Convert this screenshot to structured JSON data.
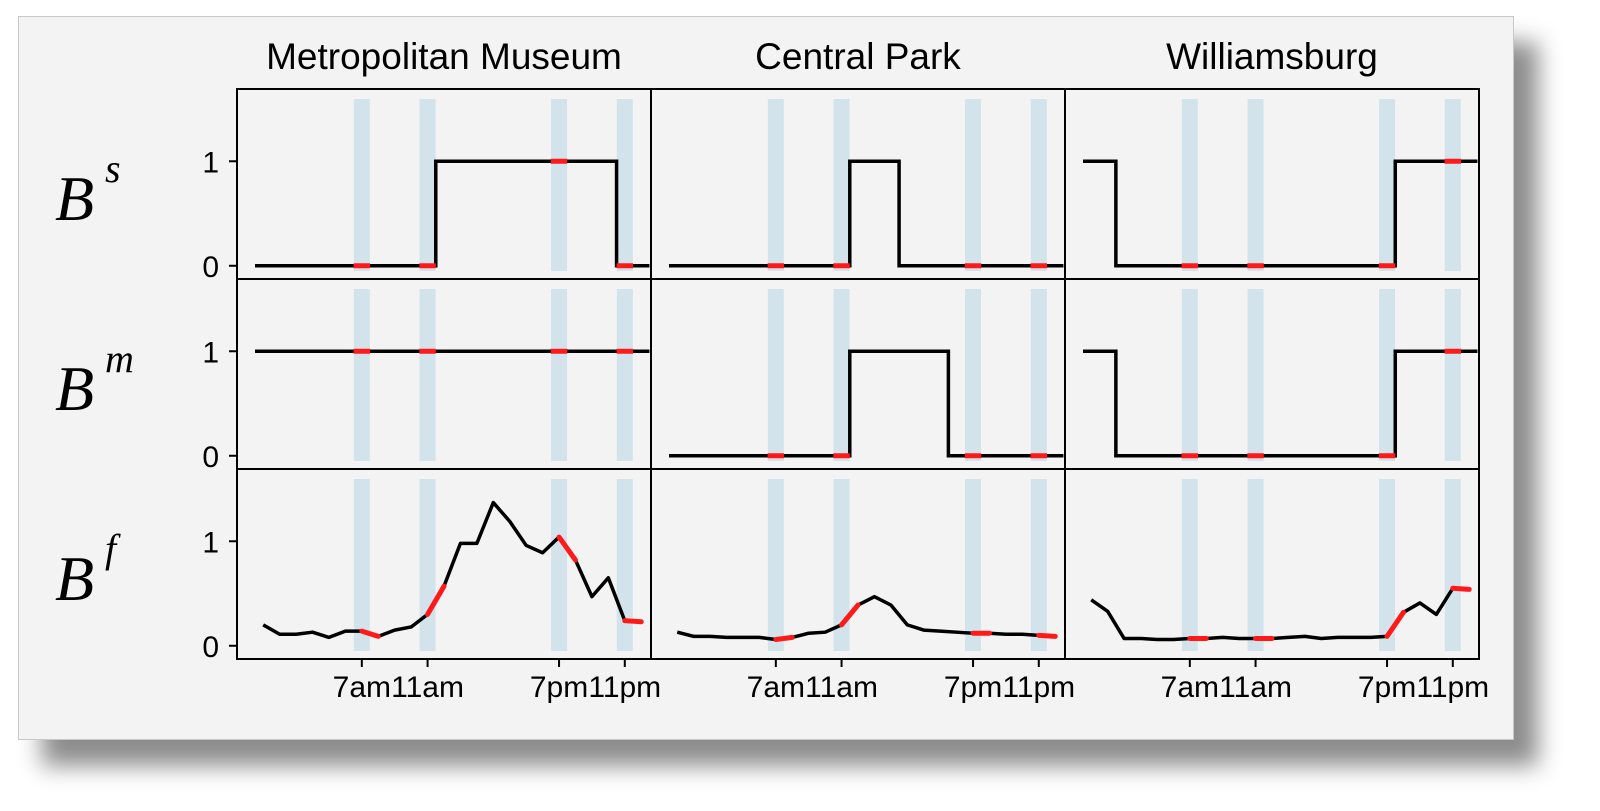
{
  "chart_data": {
    "type": "line",
    "step": true,
    "columns": [
      "Metropolitan Museum",
      "Central Park",
      "Williamsburg"
    ],
    "rows": [
      {
        "symbol": "B",
        "superscript": "s",
        "kind": "step"
      },
      {
        "symbol": "B",
        "superscript": "m",
        "kind": "step"
      },
      {
        "symbol": "B",
        "superscript": "f",
        "kind": "line"
      }
    ],
    "x_range": [
      0,
      23
    ],
    "x_tick_hours": [
      6,
      10,
      18,
      22
    ],
    "x_tick_labels": [
      "7am",
      "11am",
      "7pm",
      "11pm"
    ],
    "y_ticks": [
      0,
      1
    ],
    "y_range": [
      -0.05,
      1.5
    ],
    "shaded_hours": [
      6,
      10,
      18,
      22
    ],
    "highlight_color": "#ff1a1a",
    "line_color": "#000000",
    "band_color": "#d3e3ec",
    "series": [
      [
        {
          "x": [
            0,
            1,
            2,
            3,
            4,
            5,
            6,
            7,
            8,
            9,
            10,
            11,
            12,
            13,
            14,
            15,
            16,
            17,
            18,
            19,
            20,
            21,
            22,
            23
          ],
          "y": [
            0,
            0,
            0,
            0,
            0,
            0,
            0,
            0,
            0,
            0,
            0,
            1,
            1,
            1,
            1,
            1,
            1,
            1,
            1,
            1,
            1,
            1,
            0,
            0
          ]
        },
        {
          "x": [
            0,
            1,
            2,
            3,
            4,
            5,
            6,
            7,
            8,
            9,
            10,
            11,
            12,
            13,
            14,
            15,
            16,
            17,
            18,
            19,
            20,
            21,
            22,
            23
          ],
          "y": [
            1,
            1,
            1,
            1,
            1,
            1,
            1,
            1,
            1,
            1,
            1,
            1,
            1,
            1,
            1,
            1,
            1,
            1,
            1,
            1,
            1,
            1,
            1,
            1
          ]
        },
        {
          "x": [
            0,
            1,
            2,
            3,
            4,
            5,
            6,
            7,
            8,
            9,
            10,
            11,
            12,
            13,
            14,
            15,
            16,
            17,
            18,
            19,
            20,
            21,
            22,
            23
          ],
          "y": [
            0.2,
            0.11,
            0.11,
            0.13,
            0.08,
            0.14,
            0.14,
            0.09,
            0.15,
            0.18,
            0.3,
            0.57,
            0.98,
            0.98,
            1.37,
            1.19,
            0.96,
            0.89,
            1.04,
            0.82,
            0.47,
            0.65,
            0.24,
            0.23
          ]
        }
      ],
      [
        {
          "x": [
            0,
            1,
            2,
            3,
            4,
            5,
            6,
            7,
            8,
            9,
            10,
            11,
            12,
            13,
            14,
            15,
            16,
            17,
            18,
            19,
            20,
            21,
            22,
            23
          ],
          "y": [
            0,
            0,
            0,
            0,
            0,
            0,
            0,
            0,
            0,
            0,
            0,
            1,
            1,
            1,
            0,
            0,
            0,
            0,
            0,
            0,
            0,
            0,
            0,
            0
          ]
        },
        {
          "x": [
            0,
            1,
            2,
            3,
            4,
            5,
            6,
            7,
            8,
            9,
            10,
            11,
            12,
            13,
            14,
            15,
            16,
            17,
            18,
            19,
            20,
            21,
            22,
            23
          ],
          "y": [
            0,
            0,
            0,
            0,
            0,
            0,
            0,
            0,
            0,
            0,
            0,
            1,
            1,
            1,
            1,
            1,
            1,
            0,
            0,
            0,
            0,
            0,
            0,
            0
          ]
        },
        {
          "x": [
            0,
            1,
            2,
            3,
            4,
            5,
            6,
            7,
            8,
            9,
            10,
            11,
            12,
            13,
            14,
            15,
            16,
            17,
            18,
            19,
            20,
            21,
            22,
            23
          ],
          "y": [
            0.13,
            0.09,
            0.09,
            0.08,
            0.08,
            0.08,
            0.06,
            0.08,
            0.12,
            0.13,
            0.2,
            0.39,
            0.47,
            0.39,
            0.2,
            0.15,
            0.14,
            0.13,
            0.12,
            0.12,
            0.11,
            0.11,
            0.1,
            0.09
          ]
        }
      ],
      [
        {
          "x": [
            0,
            1,
            2,
            3,
            4,
            5,
            6,
            7,
            8,
            9,
            10,
            11,
            12,
            13,
            14,
            15,
            16,
            17,
            18,
            19,
            20,
            21,
            22,
            23
          ],
          "y": [
            1,
            1,
            0,
            0,
            0,
            0,
            0,
            0,
            0,
            0,
            0,
            0,
            0,
            0,
            0,
            0,
            0,
            0,
            0,
            1,
            1,
            1,
            1,
            1
          ]
        },
        {
          "x": [
            0,
            1,
            2,
            3,
            4,
            5,
            6,
            7,
            8,
            9,
            10,
            11,
            12,
            13,
            14,
            15,
            16,
            17,
            18,
            19,
            20,
            21,
            22,
            23
          ],
          "y": [
            1,
            1,
            0,
            0,
            0,
            0,
            0,
            0,
            0,
            0,
            0,
            0,
            0,
            0,
            0,
            0,
            0,
            0,
            0,
            1,
            1,
            1,
            1,
            1
          ]
        },
        {
          "x": [
            0,
            1,
            2,
            3,
            4,
            5,
            6,
            7,
            8,
            9,
            10,
            11,
            12,
            13,
            14,
            15,
            16,
            17,
            18,
            19,
            20,
            21,
            22,
            23
          ],
          "y": [
            0.44,
            0.33,
            0.07,
            0.07,
            0.06,
            0.06,
            0.07,
            0.07,
            0.08,
            0.07,
            0.07,
            0.07,
            0.08,
            0.09,
            0.07,
            0.08,
            0.08,
            0.08,
            0.09,
            0.32,
            0.41,
            0.3,
            0.55,
            0.54
          ]
        }
      ]
    ]
  }
}
